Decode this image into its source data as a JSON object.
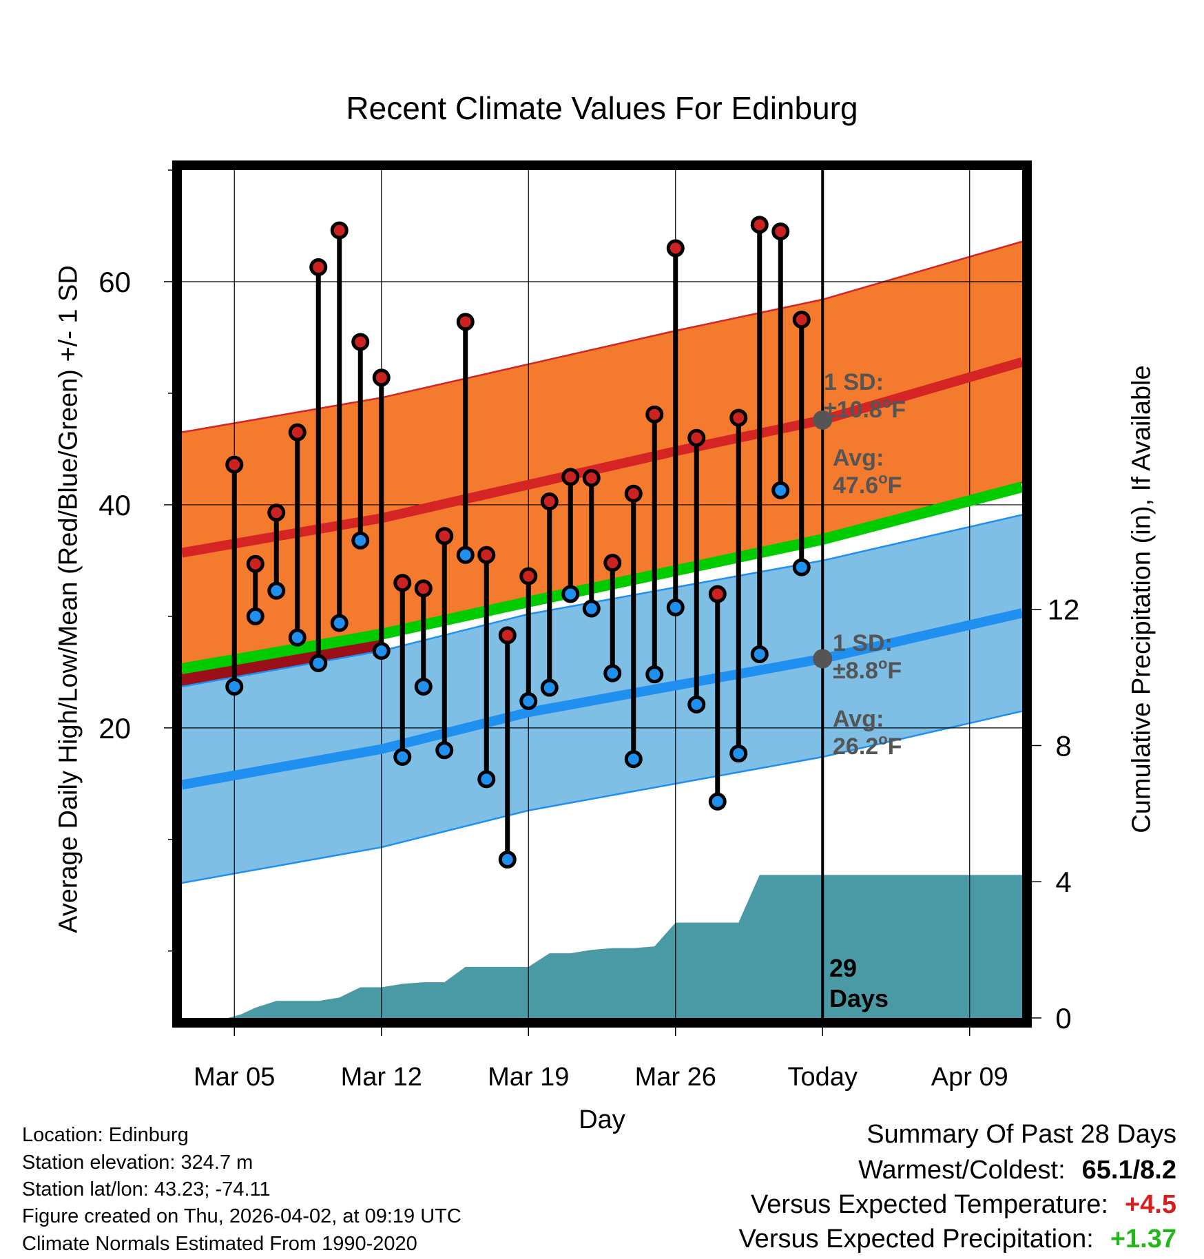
{
  "chart_data": {
    "type": "line",
    "title": "Recent Climate Values For Edinburg",
    "xlabel": "Day",
    "ylabel": "Average Daily High/Low/Mean (Red/Blue/Green) +/- 1 SD",
    "y2label": "Cumulative Precipitation (in), If Available",
    "ylim": [
      -6,
      70
    ],
    "y2lim": [
      0,
      24.9
    ],
    "xlim": [
      -2.5,
      37.5
    ],
    "x_ticks": [
      {
        "day": 0,
        "label": "Mar 05"
      },
      {
        "day": 7,
        "label": "Mar 12"
      },
      {
        "day": 14,
        "label": "Mar 19"
      },
      {
        "day": 21,
        "label": "Mar 26"
      },
      {
        "day": 28,
        "label": "Today"
      },
      {
        "day": 35,
        "label": "Apr 09"
      }
    ],
    "y_ticks": [
      20,
      40,
      60
    ],
    "y2_ticks": [
      0,
      4,
      8,
      12
    ],
    "today_day": 28,
    "days_label": [
      "29",
      "Days"
    ],
    "normals": {
      "days": [
        -2.5,
        7,
        14,
        21,
        28,
        37.5
      ],
      "high_mean": [
        35.7,
        38.8,
        41.8,
        44.8,
        47.6,
        52.8
      ],
      "high_sd": 10.8,
      "low_mean": [
        14.9,
        18.1,
        21.4,
        23.8,
        26.2,
        30.3
      ],
      "low_sd": 8.8,
      "overall_mean": [
        25.3,
        28.4,
        31.3,
        34.1,
        36.9,
        41.6
      ]
    },
    "annotations": {
      "high_sd_lines": [
        "1 SD:",
        "±10.8°F"
      ],
      "high_avg_lines": [
        "Avg:",
        "47.6°F"
      ],
      "low_sd_lines": [
        "1 SD:",
        "±8.8°F"
      ],
      "low_avg_lines": [
        "Avg:",
        "26.2°F"
      ]
    },
    "observations": [
      {
        "day": 0,
        "high": 43.6,
        "low": 23.7
      },
      {
        "day": 1,
        "high": 34.7,
        "low": 30.0
      },
      {
        "day": 2,
        "high": 39.3,
        "low": 32.3
      },
      {
        "day": 3,
        "high": 46.5,
        "low": 28.1
      },
      {
        "day": 4,
        "high": 61.3,
        "low": 25.8
      },
      {
        "day": 5,
        "high": 64.6,
        "low": 29.4
      },
      {
        "day": 6,
        "high": 54.6,
        "low": 36.8
      },
      {
        "day": 7,
        "high": 51.4,
        "low": 26.9
      },
      {
        "day": 8,
        "high": 33.0,
        "low": 17.4
      },
      {
        "day": 9,
        "high": 32.5,
        "low": 23.7
      },
      {
        "day": 10,
        "high": 37.2,
        "low": 18.0
      },
      {
        "day": 11,
        "high": 56.4,
        "low": 35.5
      },
      {
        "day": 12,
        "high": 35.5,
        "low": 15.4
      },
      {
        "day": 13,
        "high": 28.3,
        "low": 8.2
      },
      {
        "day": 14,
        "high": 33.6,
        "low": 22.4
      },
      {
        "day": 15,
        "high": 40.3,
        "low": 23.6
      },
      {
        "day": 16,
        "high": 42.5,
        "low": 32.0
      },
      {
        "day": 17,
        "high": 42.4,
        "low": 30.7
      },
      {
        "day": 18,
        "high": 34.8,
        "low": 24.9
      },
      {
        "day": 19,
        "high": 41.0,
        "low": 17.2
      },
      {
        "day": 20,
        "high": 48.1,
        "low": 24.8
      },
      {
        "day": 21,
        "high": 63.0,
        "low": 30.8
      },
      {
        "day": 22,
        "high": 46.0,
        "low": 22.1
      },
      {
        "day": 23,
        "high": 32.0,
        "low": 13.4
      },
      {
        "day": 24,
        "high": 47.8,
        "low": 17.7
      },
      {
        "day": 25,
        "high": 65.1,
        "low": 26.6
      },
      {
        "day": 26,
        "high": 64.5,
        "low": 41.3
      },
      {
        "day": 27,
        "high": 56.6,
        "low": 34.4
      }
    ],
    "precipitation": {
      "days": [
        -0.3,
        0.3,
        1,
        2,
        3,
        4,
        5,
        6,
        7,
        8,
        9,
        10,
        11,
        12,
        13,
        14,
        15,
        16,
        17,
        18,
        19,
        20,
        21,
        22,
        23,
        24,
        25,
        26,
        27,
        28,
        37.5
      ],
      "cumulative": [
        0.0,
        0.1,
        0.3,
        0.5,
        0.5,
        0.5,
        0.6,
        0.9,
        0.9,
        1.0,
        1.05,
        1.05,
        1.5,
        1.5,
        1.5,
        1.5,
        1.9,
        1.9,
        2.0,
        2.05,
        2.05,
        2.1,
        2.8,
        2.8,
        2.8,
        2.8,
        4.2,
        4.2,
        4.2,
        4.2,
        4.2
      ]
    },
    "colors": {
      "high_band": "#f47a2e",
      "high_mean": "#d42424",
      "low_band": "#80bfe5",
      "low_mean": "#1f8ff0",
      "overall_mean": "#00cc00",
      "precip": "#4a9aa6",
      "overlap": "#9a0f18",
      "high_dot": "#cc2222",
      "low_dot": "#2090f0",
      "annotation": "#555555"
    }
  },
  "info": {
    "location": "Location: Edinburg",
    "elevation": "Station elevation: 324.7 m",
    "latlon": "Station lat/lon: 43.23; -74.11",
    "created": "Figure created on Thu, 2026-04-02, at 09:19 UTC",
    "normals": "Climate Normals Estimated From 1990-2020"
  },
  "summary": {
    "title": "Summary Of Past 28 Days",
    "warm_cold_label": "Warmest/Coldest:",
    "warm_cold_value": "65.1/8.2",
    "temp_label": "Versus Expected Temperature:",
    "temp_value": "+4.5",
    "precip_label": "Versus Expected Precipitation:",
    "precip_value": "+1.37"
  }
}
